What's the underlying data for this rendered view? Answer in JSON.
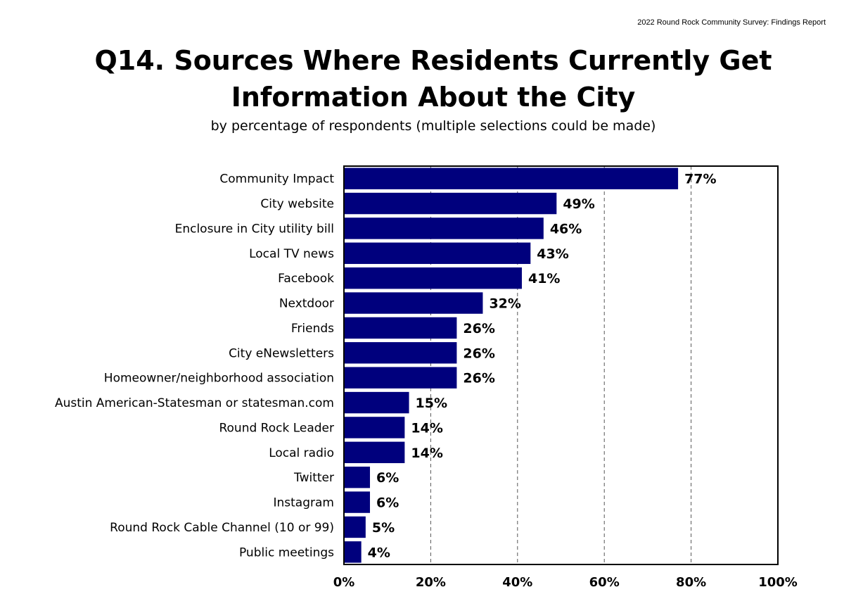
{
  "header": {
    "report_name": "2022 Round Rock Community Survey:  Findings Report"
  },
  "chart_data": {
    "type": "bar",
    "orientation": "horizontal",
    "title_line1": "Q14. Sources Where Residents Currently Get",
    "title_line2": "Information About the City",
    "subtitle": "by percentage of respondents (multiple selections could be made)",
    "categories": [
      "Community Impact",
      "City website",
      "Enclosure in City utility bill",
      "Local TV news",
      "Facebook",
      "Nextdoor",
      "Friends",
      "City eNewsletters",
      "Homeowner/neighborhood association",
      "Austin American-Statesman or statesman.com",
      "Round Rock Leader",
      "Local radio",
      "Twitter",
      "Instagram",
      "Round Rock Cable Channel (10 or 99)",
      "Public meetings"
    ],
    "values": [
      77,
      49,
      46,
      43,
      41,
      32,
      26,
      26,
      26,
      15,
      14,
      14,
      6,
      6,
      5,
      4
    ],
    "value_labels": [
      "77%",
      "49%",
      "46%",
      "43%",
      "41%",
      "32%",
      "26%",
      "26%",
      "26%",
      "15%",
      "14%",
      "14%",
      "6%",
      "6%",
      "5%",
      "4%"
    ],
    "xlim": [
      0,
      100
    ],
    "x_ticks": [
      0,
      20,
      40,
      60,
      80,
      100
    ],
    "x_tick_labels": [
      "0%",
      "20%",
      "40%",
      "60%",
      "80%",
      "100%"
    ],
    "grid": "vertical dashed",
    "bar_color": "#00007D"
  }
}
